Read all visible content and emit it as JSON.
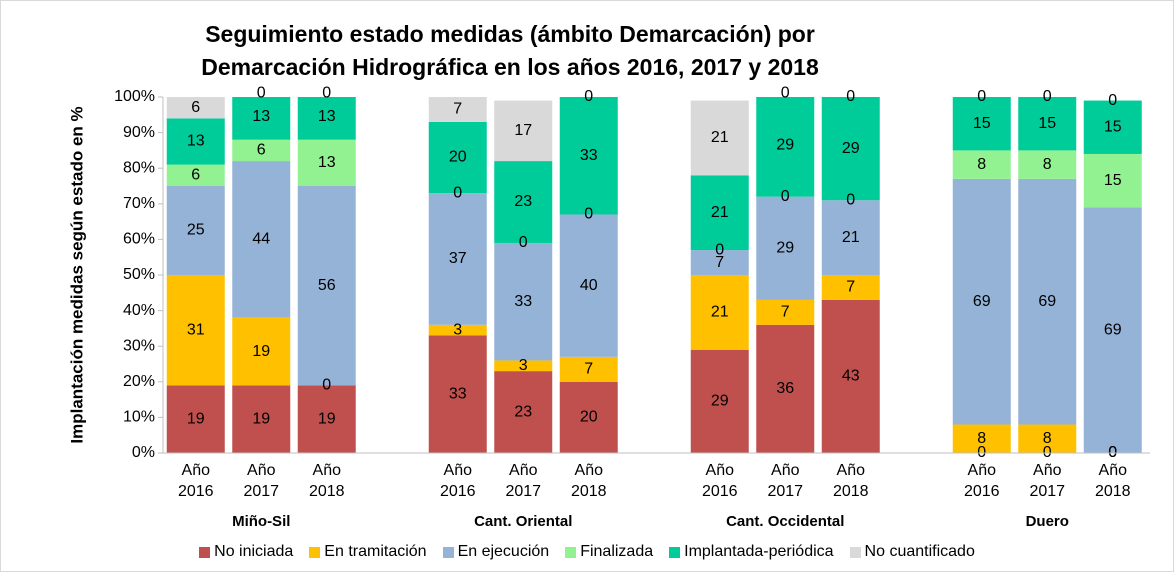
{
  "chart_data": {
    "type": "stacked_bar",
    "title": "Seguimiento estado medidas (ámbito Demarcación) por Demarcación Hidrográfica en los años 2016, 2017 y 2018",
    "y_label": "Implantación medidas según estado en  %",
    "groups": [
      "Miño-Sil",
      "Cant. Oriental",
      "Cant. Occidental",
      "Duero"
    ],
    "categories": [
      "Año 2016",
      "Año 2017",
      "Año 2018",
      "Año 2016",
      "Año 2017",
      "Año 2018",
      "Año 2016",
      "Año 2017",
      "Año 2018",
      "Año 2016",
      "Año 2017",
      "Año 2018"
    ],
    "series": [
      {
        "name": "No iniciada",
        "color": "#c0504d",
        "values": [
          19,
          19,
          19,
          33,
          23,
          20,
          29,
          36,
          43,
          0,
          0,
          0
        ]
      },
      {
        "name": "En tramitación",
        "color": "#ffc000",
        "values": [
          31,
          19,
          0,
          3,
          3,
          7,
          21,
          7,
          7,
          8,
          8,
          0
        ]
      },
      {
        "name": "En ejecución",
        "color": "#95b3d7",
        "values": [
          25,
          44,
          56,
          37,
          33,
          40,
          7,
          29,
          21,
          69,
          69,
          69
        ]
      },
      {
        "name": "Finalizada",
        "color": "#92f292",
        "values": [
          6,
          6,
          13,
          0,
          0,
          0,
          0,
          0,
          0,
          8,
          8,
          15
        ]
      },
      {
        "name": "Implantada-periódica",
        "color": "#00cc99",
        "values": [
          13,
          13,
          13,
          20,
          23,
          33,
          21,
          29,
          29,
          15,
          15,
          15
        ]
      },
      {
        "name": "No cuantificado",
        "color": "#d9d9d9",
        "values": [
          6,
          0,
          0,
          7,
          17,
          0,
          21,
          0,
          0,
          0,
          0,
          0
        ]
      }
    ],
    "ylim": [
      0,
      100
    ],
    "yticks": [
      {
        "value": 0,
        "label": "0%"
      },
      {
        "value": 10,
        "label": "10%"
      },
      {
        "value": 20,
        "label": "20%"
      },
      {
        "value": 30,
        "label": "30%"
      },
      {
        "value": 40,
        "label": "40%"
      },
      {
        "value": 50,
        "label": "50%"
      },
      {
        "value": 60,
        "label": "60%"
      },
      {
        "value": 70,
        "label": "70%"
      },
      {
        "value": 80,
        "label": "80%"
      },
      {
        "value": 90,
        "label": "90%"
      },
      {
        "value": 100,
        "label": "100%"
      }
    ],
    "grid": false,
    "legend": "bottom"
  }
}
